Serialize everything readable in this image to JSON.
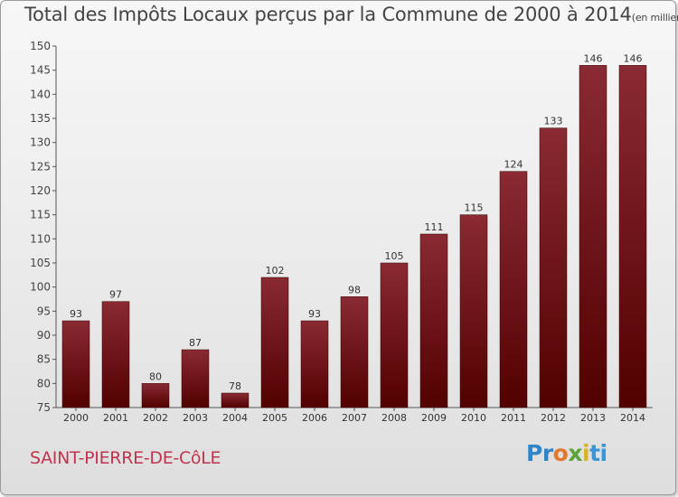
{
  "header": {
    "title": "Total des Impôts Locaux perçus par la Commune de 2000 à 2014",
    "unit": "(en milliers d'€)"
  },
  "footer": {
    "commune": "SAINT-PIERRE-DE-CôLE",
    "logo": "Proxiti"
  },
  "colors": {
    "bar_top": "#8a2a33",
    "bar_bottom": "#520000",
    "commune_text": "#c0344f"
  },
  "chart_data": {
    "type": "bar",
    "title": "Total des Impôts Locaux perçus par la Commune de 2000 à 2014",
    "subtitle": "(en milliers d'€)",
    "xlabel": "",
    "ylabel": "",
    "categories": [
      "2000",
      "2001",
      "2002",
      "2003",
      "2004",
      "2005",
      "2006",
      "2007",
      "2008",
      "2009",
      "2010",
      "2011",
      "2012",
      "2013",
      "2014"
    ],
    "values": [
      93,
      97,
      80,
      87,
      78,
      102,
      93,
      98,
      105,
      111,
      115,
      124,
      133,
      146,
      146
    ],
    "ylim": [
      75,
      150
    ],
    "yticks": [
      75,
      80,
      85,
      90,
      95,
      100,
      105,
      110,
      115,
      120,
      125,
      130,
      135,
      140,
      145,
      150
    ],
    "grid": false,
    "legend": "none"
  }
}
